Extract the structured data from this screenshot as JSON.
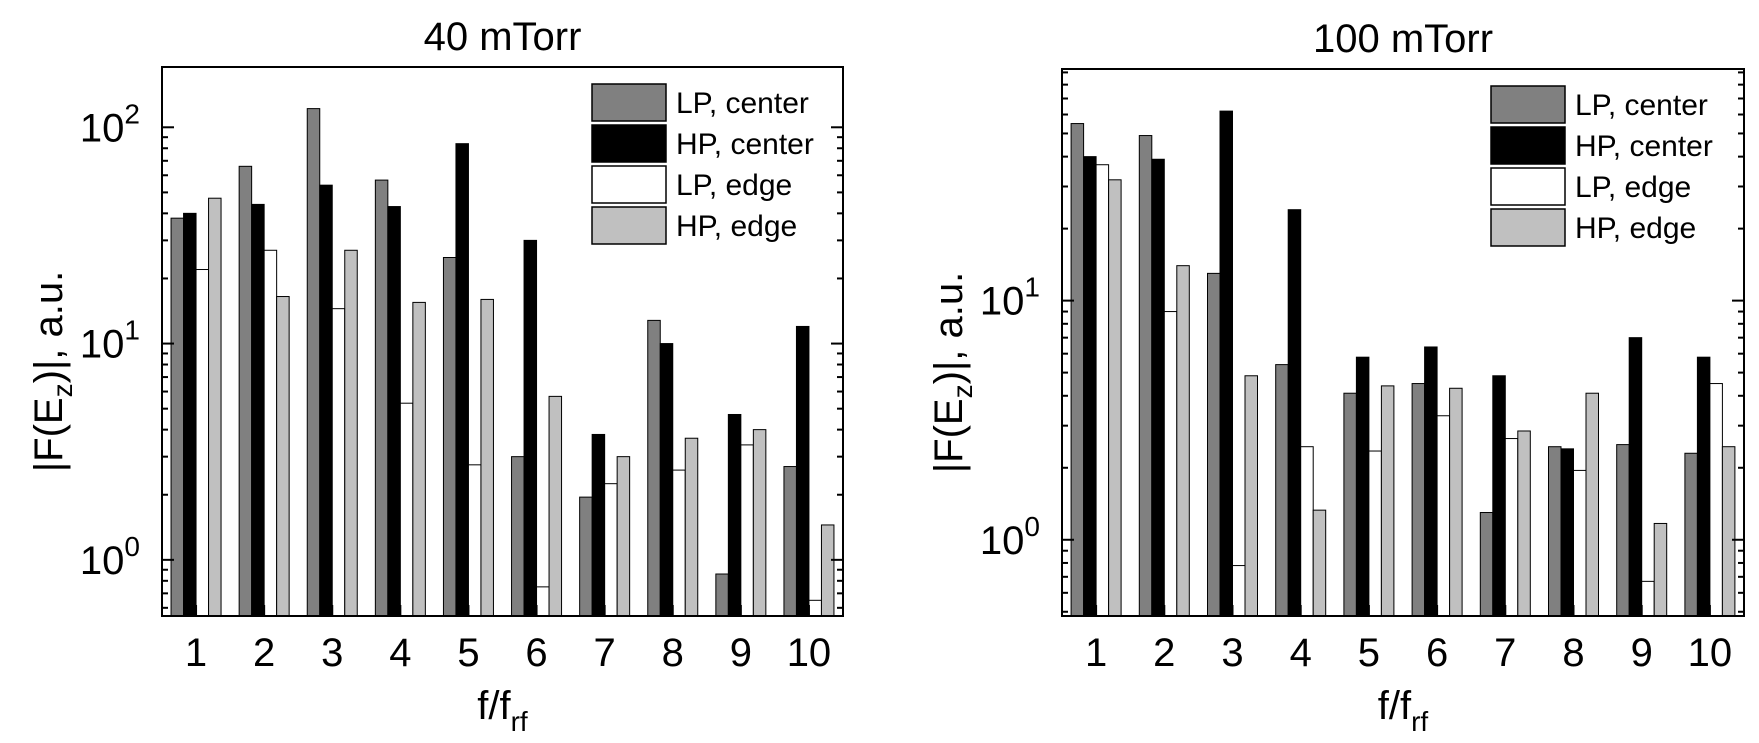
{
  "chart_data": [
    {
      "type": "bar",
      "title": "40 mTorr",
      "xlabel": "f/f",
      "xlabel_sub": "rf",
      "ylabel": "|F(E",
      "ylabel_sub": "z",
      "ylabel_tail": ")|, a.u.",
      "yscale": "log",
      "ylim": [
        0.55,
        190
      ],
      "yticks": [
        {
          "value": 1,
          "base": "10",
          "exp": "0"
        },
        {
          "value": 10,
          "base": "10",
          "exp": "1"
        },
        {
          "value": 100,
          "base": "10",
          "exp": "2"
        }
      ],
      "categories": [
        "1",
        "2",
        "3",
        "4",
        "5",
        "6",
        "7",
        "8",
        "9",
        "10"
      ],
      "legend_position": "top-right",
      "series": [
        {
          "name": "LP, center",
          "color": "#808080",
          "values": [
            38,
            66,
            122,
            57,
            25,
            3.0,
            1.95,
            12.8,
            0.86,
            2.7
          ]
        },
        {
          "name": "HP, center",
          "color": "#000000",
          "values": [
            40,
            44,
            54,
            43,
            84,
            30,
            3.8,
            10,
            4.7,
            12
          ]
        },
        {
          "name": "LP, edge",
          "color": "#ffffff",
          "values": [
            22,
            27,
            14.5,
            5.3,
            2.75,
            0.75,
            2.25,
            2.6,
            3.4,
            0.65
          ]
        },
        {
          "name": "HP, edge",
          "color": "#c0c0c0",
          "values": [
            47,
            16.5,
            27,
            15.5,
            16,
            5.7,
            3.0,
            3.65,
            4.0,
            1.45
          ]
        }
      ]
    },
    {
      "type": "bar",
      "title": "100 mTorr",
      "xlabel": "f/f",
      "xlabel_sub": "rf",
      "ylabel": "|F(E",
      "ylabel_sub": "z",
      "ylabel_tail": ")|, a.u.",
      "yscale": "log",
      "ylim": [
        0.48,
        93
      ],
      "yticks": [
        {
          "value": 1,
          "base": "10",
          "exp": "0"
        },
        {
          "value": 10,
          "base": "10",
          "exp": "1"
        }
      ],
      "categories": [
        "1",
        "2",
        "3",
        "4",
        "5",
        "6",
        "7",
        "8",
        "9",
        "10"
      ],
      "legend_position": "top-right",
      "series": [
        {
          "name": "LP, center",
          "color": "#808080",
          "values": [
            55,
            49,
            13,
            5.4,
            4.1,
            4.5,
            1.3,
            2.45,
            2.5,
            2.3
          ]
        },
        {
          "name": "HP, center",
          "color": "#000000",
          "values": [
            40,
            39,
            62,
            24,
            5.8,
            6.4,
            4.85,
            2.4,
            7.0,
            5.8
          ]
        },
        {
          "name": "LP, edge",
          "color": "#ffffff",
          "values": [
            37,
            9.0,
            0.78,
            2.45,
            2.35,
            3.3,
            2.65,
            1.95,
            0.67,
            4.5
          ]
        },
        {
          "name": "HP, edge",
          "color": "#c0c0c0",
          "values": [
            32,
            14,
            4.85,
            1.33,
            4.4,
            4.3,
            2.85,
            4.1,
            1.17,
            2.45
          ]
        }
      ]
    }
  ]
}
